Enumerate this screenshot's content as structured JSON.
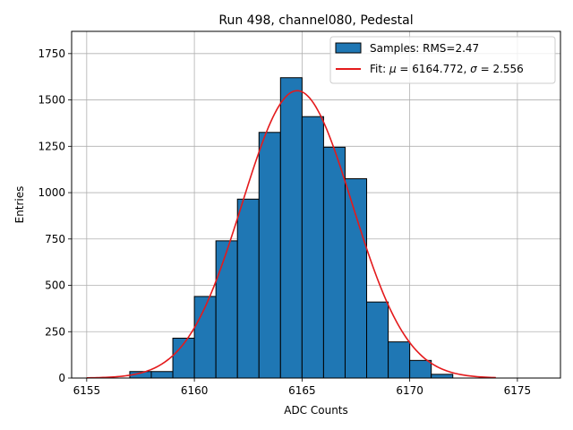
{
  "chart_data": {
    "type": "bar",
    "title": "Run 498, channel080, Pedestal",
    "xlabel": "ADC Counts",
    "ylabel": "Entries",
    "xlim": [
      6154.3,
      6177.0
    ],
    "ylim": [
      0,
      1870
    ],
    "x_ticks": [
      6155,
      6160,
      6165,
      6170,
      6175
    ],
    "y_ticks": [
      0,
      250,
      500,
      750,
      1000,
      1250,
      1500,
      1750
    ],
    "x_tick_labels": [
      "6155",
      "6160",
      "6165",
      "6170",
      "6175"
    ],
    "y_tick_labels": [
      "0",
      "250",
      "500",
      "750",
      "1000",
      "1250",
      "1500",
      "1750"
    ],
    "grid": true,
    "legend_position": "top-right",
    "series": [
      {
        "name": "Samples: RMS=2.47",
        "kind": "histogram",
        "color": "#1f77b4",
        "edgecolor": "#000000",
        "bin_edges": [
          6157,
          6158,
          6159,
          6160,
          6161,
          6162,
          6163,
          6164,
          6165,
          6166,
          6167,
          6168,
          6169,
          6170,
          6171,
          6172
        ],
        "values": [
          35,
          35,
          215,
          440,
          740,
          965,
          1325,
          1620,
          1410,
          1245,
          1075,
          410,
          195,
          95,
          20
        ]
      },
      {
        "name": "Fit: $\\mu$ = 6164.772, $\\sigma$ = 2.556",
        "legend_prefix": "Fit: ",
        "legend_mu": "μ",
        "legend_mid": " = 6164.772, ",
        "legend_sigma": "σ",
        "legend_suffix": " = 2.556",
        "kind": "gaussian",
        "color": "#e41a1c",
        "mu": 6164.772,
        "sigma": 2.556,
        "amplitude": 1550,
        "x_range": [
          6155,
          6174
        ]
      }
    ]
  }
}
